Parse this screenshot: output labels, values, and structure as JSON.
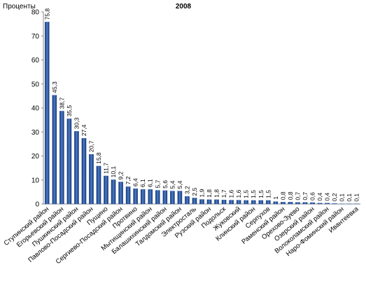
{
  "chart_data": {
    "type": "bar",
    "title": "2008",
    "y_label": "Проценты",
    "categories": [
      "Ступинский район",
      null,
      "Егорьевский район",
      null,
      "Пушкинский район",
      null,
      "Павлово-Посадский район",
      null,
      "Пущино",
      null,
      "Сергиево-Посадский район",
      null,
      "Протвино",
      null,
      "Мытищинский район",
      null,
      "Балашихинский район",
      null,
      "Талдомский район",
      null,
      "Электросталь",
      null,
      "Рузский район",
      null,
      "Подольск",
      null,
      "Жуковский",
      null,
      "Клинский район",
      null,
      "Серпухов",
      null,
      "Раменский район",
      null,
      "Орехово-Зуево",
      null,
      "Озерский район",
      null,
      "Волоколамский район",
      null,
      "Наро-Фоминский район",
      null,
      "Ивантеевка"
    ],
    "values": [
      75.8,
      45.3,
      38.7,
      35.5,
      30.3,
      27.4,
      20.7,
      15.8,
      11.7,
      10.1,
      9.2,
      7.2,
      6.4,
      6.1,
      6.1,
      5.7,
      5.6,
      5.4,
      5.4,
      3.2,
      2.5,
      1.9,
      1.8,
      1.8,
      1.7,
      1.6,
      1.6,
      1.5,
      1.5,
      1.5,
      1.5,
      1,
      0.8,
      0.8,
      0.7,
      0.7,
      0.6,
      0.4,
      0.4,
      0.2,
      0.1,
      0.1,
      0.1
    ],
    "value_labels": [
      "75,8",
      "45,3",
      "38,7",
      "35,5",
      "30,3",
      "27,4",
      "20,7",
      "15,8",
      "11,7",
      "10,1",
      "9,2",
      "7,2",
      "6,4",
      "6,1",
      "6,1",
      "5,7",
      "5,6",
      "5,4",
      "5,4",
      "3,2",
      "2,5",
      "1,9",
      "1,8",
      "1,8",
      "1,7",
      "1,6",
      "1,6",
      "1,5",
      "1,5",
      "1,5",
      "1,5",
      "1",
      "0,8",
      "0,8",
      "0,7",
      "0,7",
      "0,6",
      "0,4",
      "0,4",
      "0,2",
      "0,1",
      "0,1",
      "0,1"
    ],
    "color": "#2a5aa8",
    "ylim": [
      0,
      80
    ],
    "yticks": [
      0,
      10,
      20,
      30,
      40,
      50,
      60,
      70,
      80
    ],
    "grid": false
  }
}
